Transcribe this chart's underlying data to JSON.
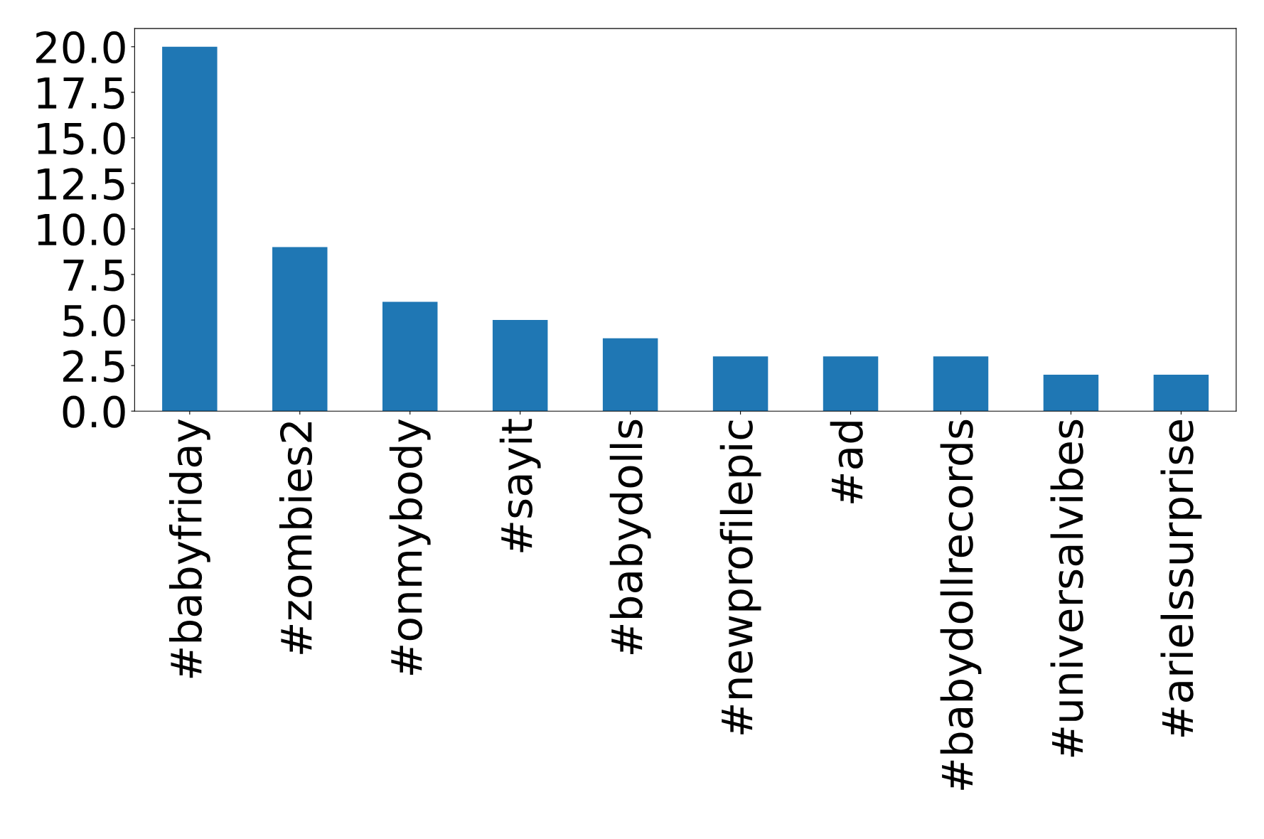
{
  "chart_data": {
    "type": "bar",
    "categories": [
      "#babyfriday",
      "#zombies2",
      "#onmybody",
      "#sayit",
      "#babydolls",
      "#newprofilepic",
      "#ad",
      "#babydollrecords",
      "#universalvibes",
      "#arielssurprise"
    ],
    "values": [
      20,
      9,
      6,
      5,
      4,
      3,
      3,
      3,
      2,
      2
    ],
    "color": "#1f77b4",
    "ylim": [
      0,
      21
    ],
    "yticks": [
      {
        "value": 0,
        "label": "0.0"
      },
      {
        "value": 2.5,
        "label": "2.5"
      },
      {
        "value": 5,
        "label": "5.0"
      },
      {
        "value": 7.5,
        "label": "7.5"
      },
      {
        "value": 10,
        "label": "10.0"
      },
      {
        "value": 12.5,
        "label": "12.5"
      },
      {
        "value": 15,
        "label": "15.0"
      },
      {
        "value": 17.5,
        "label": "17.5"
      },
      {
        "value": 20,
        "label": "20.0"
      }
    ],
    "grid": false,
    "legend": false
  }
}
